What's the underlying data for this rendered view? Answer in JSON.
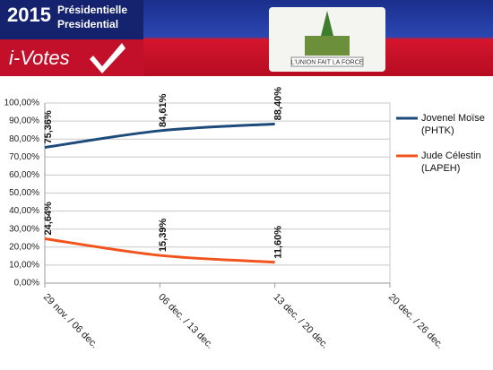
{
  "header": {
    "year": "2015",
    "title_fr": "Présidentielle",
    "title_en": "Presidential",
    "brand": "i-Votes",
    "motto": "L'UNION FAIT LA FORCE"
  },
  "chart_data": {
    "type": "line",
    "categories": [
      "29 nov. / 06 dec.",
      "06 dec. / 13 dec.",
      "13 dec. / 20 dec.",
      "20 dec. / 26 dec."
    ],
    "series": [
      {
        "name": "Jovenel Moïse (PHTK)",
        "color": "#1c4a7a",
        "values": [
          75.36,
          84.61,
          88.4,
          null
        ],
        "value_labels": [
          "75,36%",
          "84,61%",
          "88,40%",
          null
        ]
      },
      {
        "name": "Jude Célestin (LAPEH)",
        "color": "#f0531c",
        "values": [
          24.64,
          15.39,
          11.6,
          null
        ],
        "value_labels": [
          "24,64%",
          "15,39%",
          "11,60%",
          null
        ]
      }
    ],
    "ylim": [
      0,
      100
    ],
    "yticks": [
      {
        "value": 0,
        "label": "0,00%"
      },
      {
        "value": 10,
        "label": "10,00%"
      },
      {
        "value": 20,
        "label": "20,00%"
      },
      {
        "value": 30,
        "label": "30,00%"
      },
      {
        "value": 40,
        "label": "40,00%"
      },
      {
        "value": 50,
        "label": "50,00%"
      },
      {
        "value": 60,
        "label": "60,00%"
      },
      {
        "value": 70,
        "label": "70,00%"
      },
      {
        "value": 80,
        "label": "80,00%"
      },
      {
        "value": 90,
        "label": "90,00%"
      },
      {
        "value": 100,
        "label": "100,00%"
      }
    ],
    "grid": true,
    "legend": "right"
  }
}
